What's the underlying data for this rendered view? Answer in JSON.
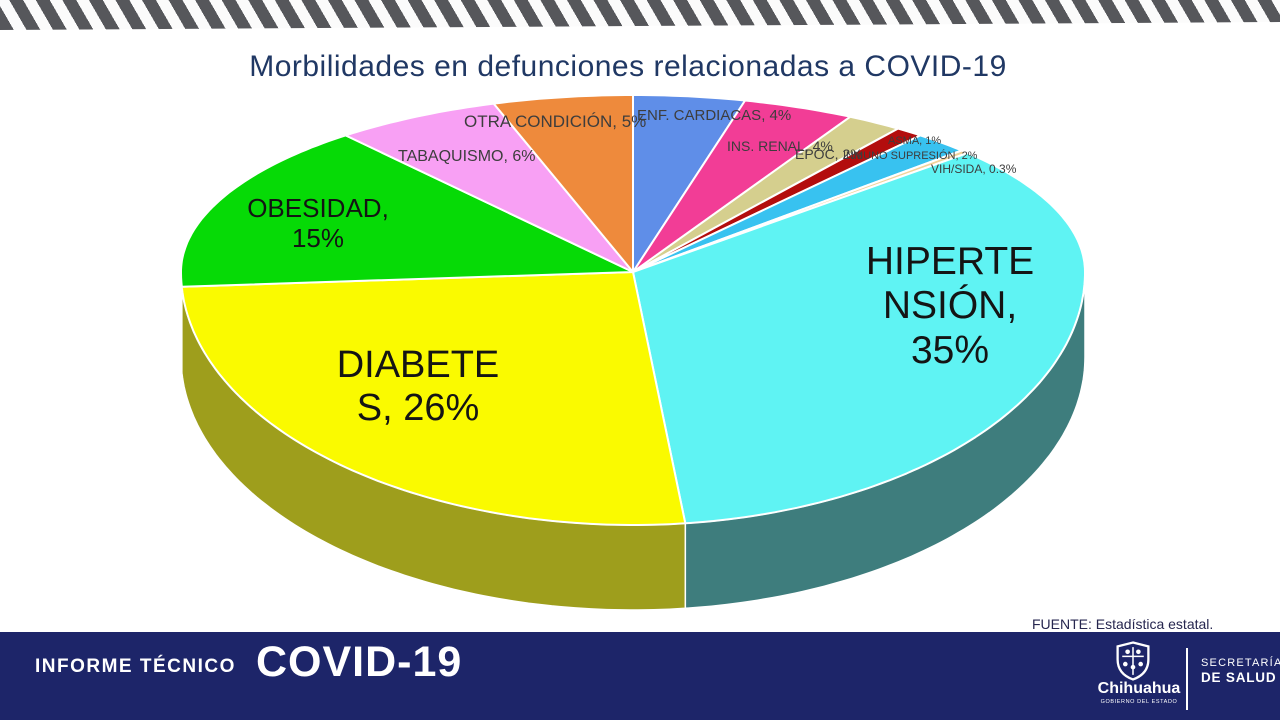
{
  "slide": {
    "title": "Morbilidades en defunciones relacionadas a COVID-19",
    "source_note": "FUENTE:  Estadística estatal."
  },
  "chart_data": {
    "type": "pie",
    "title": "Morbilidades en defunciones relacionadas a COVID-19",
    "style": "3d",
    "start_angle_deg": 0,
    "direction": "clockwise",
    "unit": "%",
    "slices": [
      {
        "label": "ENF. CARDIACAS",
        "value": 4,
        "color": "#5f8ee8"
      },
      {
        "label": "INS. RENAL",
        "value": 4,
        "color": "#f23d96"
      },
      {
        "label": "EPOC",
        "value": 2,
        "color": "#d5cf8e"
      },
      {
        "label": "ASMA",
        "value": 1,
        "color": "#b30d0d"
      },
      {
        "label": "INMUNO SUPRESIÓN",
        "value": 2,
        "color": "#38c2f0"
      },
      {
        "label": "VIH/SIDA",
        "value": 0.3,
        "color": "#f2d39b"
      },
      {
        "label": "HIPERTENSIÓN",
        "value": 35,
        "color": "#5ff3f3",
        "side_color": "#3e7d7d"
      },
      {
        "label": "DIABETES",
        "value": 26,
        "color": "#fafa00",
        "side_color": "#9e9e1c"
      },
      {
        "label": "OBESIDAD",
        "value": 15,
        "color": "#06da06",
        "side_color": "#0a8a0a"
      },
      {
        "label": "TABAQUISMO",
        "value": 6,
        "color": "#f8a0f4"
      },
      {
        "label": "OTRA CONDICIÓN",
        "value": 5,
        "color": "#ee8a3c"
      }
    ]
  },
  "callouts": {
    "otra_condicion": "OTRA CONDICIÓN, 5%",
    "enf_cardiacas": "ENF. CARDIACAS, 4%",
    "ins_renal": "INS. RENAL, 4%",
    "inmuno_supresion": "INMUNO SUPRESIÓN, 2%",
    "epoc": "EPOC, 2%",
    "asma": "ASMA, 1%",
    "vih_sida": "VIH/SIDA, 0.3%",
    "tabaquismo": "TABAQUISMO, 6%",
    "obesidad": "OBESIDAD,\n15%",
    "diabetes": "DIABETE\nS, 26%",
    "hipertension": "HIPERTE\nNSIÓN,\n35%"
  },
  "footer": {
    "report_type": "INFORME TÉCNICO",
    "report_title": "COVID-19",
    "logo": {
      "state_name": "Chihuahua",
      "state_subtitle": "GOBIERNO DEL ESTADO",
      "ministry_line1": "SECRETARÍA",
      "ministry_line2": "DE SALUD"
    }
  },
  "colors": {
    "title_text": "#203864",
    "footer_bg": "#1d2569",
    "stripe_gray": "#56575b",
    "callout_text": "#3d3d3d"
  }
}
